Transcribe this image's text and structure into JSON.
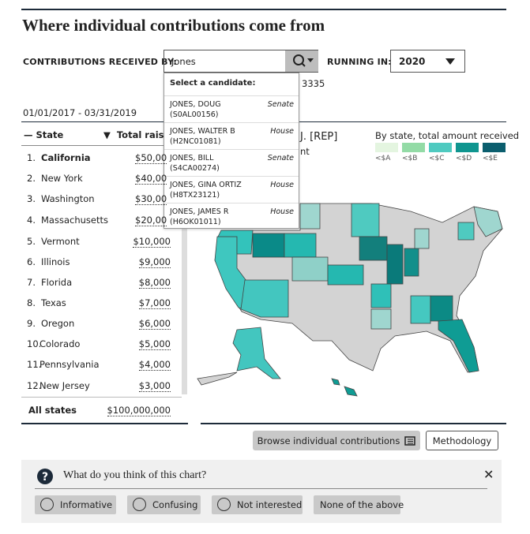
{
  "header": {
    "title": "Where individual contributions come from"
  },
  "search": {
    "label": "CONTRIBUTIONS RECEIVED BY:",
    "query": "Jones",
    "running_in_label": "RUNNING IN:",
    "year": "2020"
  },
  "dropdown": {
    "heading": "Select a candidate:",
    "candidates": [
      {
        "name": "JONES, DOUG",
        "id": "(S0AL00156)",
        "office": "Senate"
      },
      {
        "name": "JONES, WALTER B",
        "id": "(H2NC01081)",
        "office": "House"
      },
      {
        "name": "JONES, BILL",
        "id": "(S4CA00274)",
        "office": "Senate"
      },
      {
        "name": "JONES, GINA ORTIZ",
        "id": "(H8TX23121)",
        "office": "House"
      },
      {
        "name": "JONES, JAMES R",
        "id": "(H6OK01011)",
        "office": "House"
      }
    ]
  },
  "occluded": [
    "3335",
    "J. [REP]",
    "nt"
  ],
  "date_range": "01/01/2017 - 03/31/2019",
  "table": {
    "columns": [
      "State",
      "Total raise"
    ],
    "rows": [
      [
        "1.",
        "California",
        "$50,00"
      ],
      [
        "2.",
        "New York",
        "$40,00"
      ],
      [
        "3.",
        "Washington",
        "$30,00"
      ],
      [
        "4.",
        "Massachusetts",
        "$20,00"
      ],
      [
        "5.",
        "Vermont",
        "$10,000"
      ],
      [
        "6.",
        "Illinois",
        "$9,000"
      ],
      [
        "7.",
        "Florida",
        "$8,000"
      ],
      [
        "8.",
        "Texas",
        "$7,000"
      ],
      [
        "9.",
        "Oregon",
        "$6,000"
      ],
      [
        "10.",
        "Colorado",
        "$5,000"
      ],
      [
        "11.",
        "Pennsylvania",
        "$4,000"
      ],
      [
        "12.",
        "New Jersey",
        "$3,000"
      ]
    ],
    "total": [
      "All states",
      "$100,000,000"
    ]
  },
  "legend": {
    "title": "By state, total amount received",
    "items": [
      {
        "label": "<$A",
        "color": "#e4f5e0"
      },
      {
        "label": "<$B",
        "color": "#93dba6"
      },
      {
        "label": "<$C",
        "color": "#4fcac0"
      },
      {
        "label": "<$D",
        "color": "#0f958f"
      },
      {
        "label": "<$E",
        "color": "#0b5e6e"
      }
    ]
  },
  "buttons": [
    "Browse individual contributions",
    "Methodology"
  ],
  "feedback": {
    "question": "What do you think of this chart?",
    "options": [
      "Informative",
      "Confusing",
      "Not interested",
      "None of the above"
    ]
  }
}
